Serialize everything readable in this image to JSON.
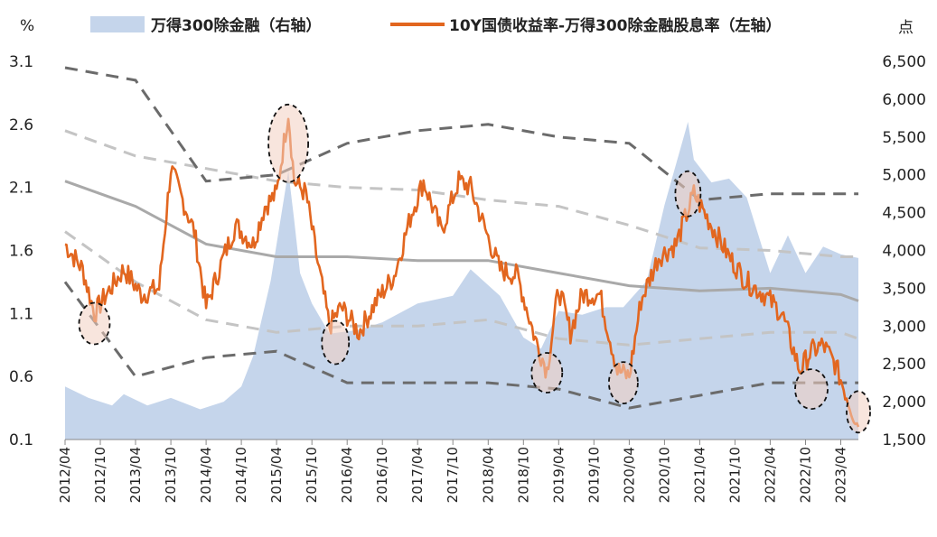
{
  "chart_data": {
    "type": "line",
    "left_axis": {
      "unit": "%",
      "ticks": [
        0.1,
        0.6,
        1.1,
        1.6,
        2.1,
        2.6,
        3.1
      ],
      "ylim": [
        0.1,
        3.1
      ]
    },
    "right_axis": {
      "unit": "点",
      "ticks": [
        1500,
        2000,
        2500,
        3000,
        3500,
        4000,
        4500,
        5000,
        5500,
        6000,
        6500
      ],
      "tick_labels": [
        "1,500",
        "2,000",
        "2,500",
        "3,000",
        "3,500",
        "4,000",
        "4,500",
        "5,000",
        "5,500",
        "6,000",
        "6,500"
      ],
      "ylim": [
        1500,
        6500
      ]
    },
    "x_tick_labels": [
      "2012/04",
      "2012/10",
      "2013/04",
      "2013/10",
      "2014/04",
      "2014/10",
      "2015/04",
      "2015/10",
      "2016/04",
      "2016/10",
      "2017/04",
      "2017/10",
      "2018/04",
      "2018/10",
      "2019/04",
      "2019/10",
      "2020/04",
      "2020/10",
      "2021/04",
      "2021/10",
      "2022/04",
      "2022/10",
      "2023/04"
    ],
    "x_range": [
      "2012/04",
      "2023/07"
    ],
    "legend_placement": "top",
    "grid": false,
    "colors": {
      "area": "#c5d5eb",
      "spread": "#e2661f",
      "mean": "#a9a9a9",
      "band1": "#c4c4c4",
      "band2": "#6b6b6b",
      "highlight": "#f2cfc1"
    },
    "series": [
      {
        "name": "万得300除金融（右轴）",
        "type": "area",
        "axis": "right",
        "x": [
          "2012/04",
          "2012/08",
          "2012/12",
          "2013/02",
          "2013/06",
          "2013/10",
          "2014/03",
          "2014/07",
          "2014/10",
          "2014/12",
          "2015/03",
          "2015/06",
          "2015/07",
          "2015/08",
          "2015/10",
          "2016/01",
          "2016/06",
          "2016/10",
          "2017/04",
          "2017/10",
          "2018/01",
          "2018/06",
          "2018/10",
          "2019/01",
          "2019/04",
          "2019/08",
          "2019/12",
          "2020/03",
          "2020/07",
          "2020/10",
          "2021/02",
          "2021/03",
          "2021/06",
          "2021/09",
          "2021/12",
          "2022/04",
          "2022/07",
          "2022/10",
          "2023/01",
          "2023/04",
          "2023/07"
        ],
        "y": [
          2200,
          2050,
          1950,
          2100,
          1950,
          2050,
          1900,
          2000,
          2200,
          2600,
          3600,
          5050,
          4400,
          3700,
          3300,
          2900,
          2950,
          3050,
          3300,
          3400,
          3750,
          3400,
          2850,
          2700,
          3200,
          3150,
          3250,
          3250,
          3600,
          4600,
          5700,
          5200,
          4900,
          4950,
          4700,
          3700,
          4200,
          3700,
          4050,
          3950,
          3900
        ]
      },
      {
        "name": "10Y国债收益率-万得300除金融股息率（左轴）",
        "type": "line",
        "axis": "left",
        "x": [
          "2012/04",
          "2012/07",
          "2012/09",
          "2012/11",
          "2013/02",
          "2013/05",
          "2013/08",
          "2013/10",
          "2013/12",
          "2014/02",
          "2014/04",
          "2014/07",
          "2014/09",
          "2014/12",
          "2015/02",
          "2015/04",
          "2015/06",
          "2015/07",
          "2015/09",
          "2015/11",
          "2016/01",
          "2016/03",
          "2016/06",
          "2016/09",
          "2016/12",
          "2017/03",
          "2017/05",
          "2017/08",
          "2017/11",
          "2018/01",
          "2018/04",
          "2018/06",
          "2018/09",
          "2018/12",
          "2019/02",
          "2019/04",
          "2019/06",
          "2019/08",
          "2019/11",
          "2020/02",
          "2020/04",
          "2020/06",
          "2020/09",
          "2020/12",
          "2021/03",
          "2021/06",
          "2021/09",
          "2021/12",
          "2022/03",
          "2022/06",
          "2022/09",
          "2022/11",
          "2023/01",
          "2023/03",
          "2023/05",
          "2023/07"
        ],
        "y": [
          1.65,
          1.45,
          1.1,
          1.25,
          1.45,
          1.25,
          1.3,
          2.25,
          2.0,
          1.75,
          1.15,
          1.55,
          1.8,
          1.65,
          1.95,
          2.05,
          2.7,
          2.15,
          2.05,
          1.5,
          1.0,
          1.15,
          0.95,
          1.2,
          1.4,
          1.9,
          2.15,
          1.75,
          2.15,
          2.1,
          1.7,
          1.45,
          1.4,
          0.9,
          0.65,
          1.3,
          0.95,
          1.25,
          1.25,
          0.65,
          0.6,
          1.2,
          1.55,
          1.65,
          2.05,
          1.8,
          1.55,
          1.35,
          1.25,
          1.1,
          0.65,
          0.8,
          0.85,
          0.7,
          0.45,
          0.2
        ]
      },
      {
        "type": "line",
        "axis": "left",
        "x": [
          "2012/04",
          "2013/04",
          "2014/04",
          "2015/04",
          "2016/04",
          "2017/04",
          "2018/04",
          "2019/04",
          "2020/04",
          "2021/04",
          "2022/04",
          "2023/04",
          "2023/07"
        ],
        "y": [
          2.15,
          1.95,
          1.65,
          1.55,
          1.55,
          1.52,
          1.52,
          1.42,
          1.32,
          1.28,
          1.3,
          1.25,
          1.2
        ]
      },
      {
        "type": "line",
        "axis": "left",
        "x": [
          "2012/04",
          "2013/04",
          "2014/04",
          "2015/04",
          "2016/04",
          "2017/04",
          "2018/04",
          "2019/04",
          "2020/04",
          "2021/04",
          "2022/04",
          "2023/04",
          "2023/07"
        ],
        "y": [
          2.55,
          2.35,
          2.25,
          2.15,
          2.1,
          2.08,
          2.0,
          1.95,
          1.8,
          1.62,
          1.6,
          1.55,
          1.55
        ]
      },
      {
        "type": "line",
        "axis": "left",
        "x": [
          "2012/04",
          "2013/04",
          "2014/04",
          "2015/04",
          "2016/04",
          "2017/04",
          "2018/04",
          "2019/04",
          "2020/04",
          "2021/04",
          "2022/04",
          "2023/04",
          "2023/07"
        ],
        "y": [
          1.75,
          1.35,
          1.05,
          0.95,
          1.0,
          1.0,
          1.05,
          0.9,
          0.85,
          0.9,
          0.95,
          0.95,
          0.9
        ]
      },
      {
        "type": "line",
        "axis": "left",
        "x": [
          "2012/04",
          "2013/04",
          "2014/04",
          "2015/04",
          "2016/04",
          "2017/04",
          "2018/04",
          "2019/04",
          "2020/04",
          "2021/04",
          "2022/04",
          "2023/04",
          "2023/07"
        ],
        "y": [
          3.05,
          2.95,
          2.15,
          2.2,
          2.45,
          2.55,
          2.6,
          2.5,
          2.45,
          2.0,
          2.05,
          2.05,
          2.05
        ]
      },
      {
        "type": "line",
        "axis": "left",
        "x": [
          "2012/04",
          "2013/04",
          "2014/04",
          "2015/04",
          "2016/04",
          "2017/04",
          "2018/04",
          "2019/04",
          "2020/04",
          "2021/04",
          "2022/04",
          "2023/04",
          "2023/07"
        ],
        "y": [
          1.35,
          0.6,
          0.75,
          0.8,
          0.55,
          0.55,
          0.55,
          0.5,
          0.35,
          0.45,
          0.55,
          0.55,
          0.55
        ]
      }
    ],
    "annotations": [
      {
        "type": "ellipse",
        "x": "2012/09",
        "y": 1.02
      },
      {
        "type": "ellipse",
        "x": "2015/06",
        "y": 2.45
      },
      {
        "type": "ellipse",
        "x": "2016/02",
        "y": 0.87
      },
      {
        "type": "ellipse",
        "x": "2019/02",
        "y": 0.63
      },
      {
        "type": "ellipse",
        "x": "2020/03",
        "y": 0.55
      },
      {
        "type": "ellipse",
        "x": "2021/02",
        "y": 2.05
      },
      {
        "type": "ellipse",
        "x": "2022/11",
        "y": 0.5
      },
      {
        "type": "ellipse",
        "x": "2023/07",
        "y": 0.32
      }
    ]
  }
}
